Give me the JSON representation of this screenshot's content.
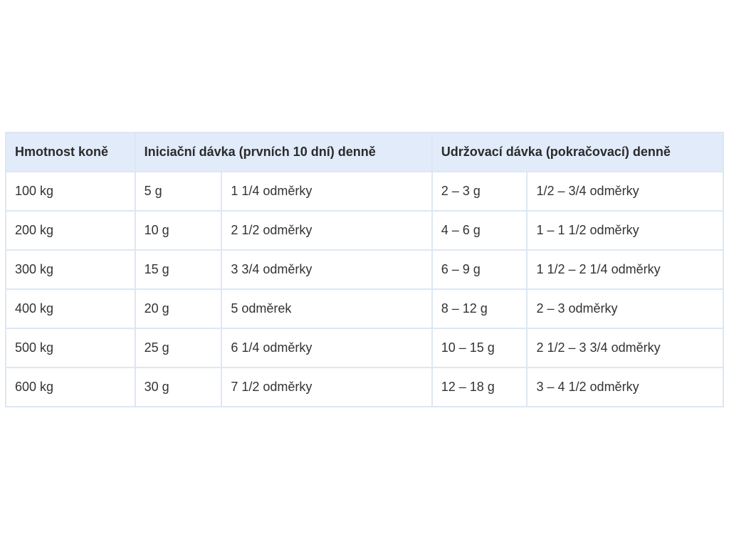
{
  "table": {
    "headers": [
      "Hmotnost koně",
      "Iniciační dávka (prvních 10 dní) denně",
      "Udržovací dávka (pokračovací) denně"
    ],
    "rows": [
      [
        "100 kg",
        "5 g",
        "1 1/4 odměrky",
        "2 – 3 g",
        "1/2 – 3/4 odměrky"
      ],
      [
        "200 kg",
        "10 g",
        "2 1/2 odměrky",
        "4 – 6 g",
        "1 – 1 1/2 odměrky"
      ],
      [
        "300 kg",
        "15 g",
        "3 3/4 odměrky",
        "6 – 9 g",
        "1 1/2 – 2 1/4 odměrky"
      ],
      [
        "400 kg",
        "20 g",
        "5 odměrek",
        "8 – 12 g",
        "2 – 3 odměrky"
      ],
      [
        "500 kg",
        "25 g",
        "6 1/4 odměrky",
        "10 – 15 g",
        "2 1/2 – 3 3/4 odměrky"
      ],
      [
        "600 kg",
        "30 g",
        "7 1/2 odměrky",
        "12 – 18 g",
        "3 – 4 1/2 odměrky"
      ]
    ]
  },
  "colors": {
    "header_bg": "#e2ebf9",
    "border": "#dde7f4",
    "text": "#333333"
  }
}
